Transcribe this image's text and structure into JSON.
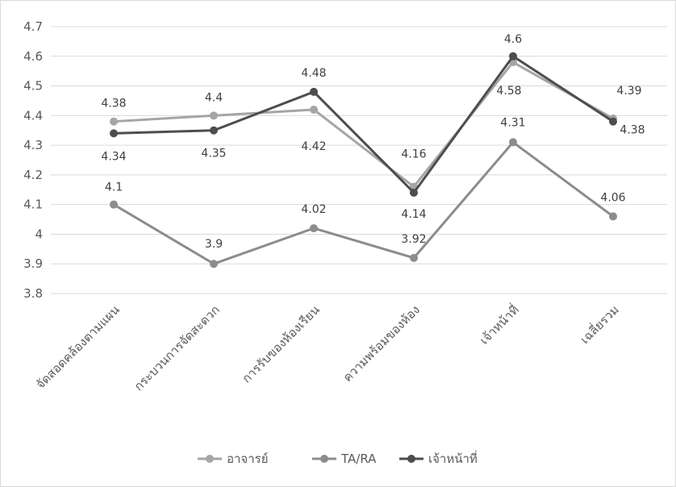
{
  "chart_data": {
    "type": "line",
    "title": "",
    "xlabel": "",
    "ylabel": "",
    "categories": [
      "จัดสอดคล้องตามแผน",
      "กระบวนการจัดสะดวก",
      "การรับของห้องเรียน",
      "ความพร้อมของห้อง",
      "เจ้าหน้าที่",
      "เฉลี่ยรวม"
    ],
    "yticks": [
      "3.8",
      "3.9",
      "4",
      "4.1",
      "4.2",
      "4.3",
      "4.4",
      "4.5",
      "4.6",
      "4.7"
    ],
    "ylim": [
      3.8,
      4.7
    ],
    "grid": true,
    "legend_position": "bottom",
    "series": [
      {
        "name": "อาจารย์",
        "color": "#a5a5a5",
        "values": [
          4.38,
          4.4,
          4.42,
          4.16,
          4.58,
          4.39
        ],
        "labels": [
          "4.38",
          "4.4",
          "4.42",
          "4.16",
          "4.58",
          "4.39"
        ]
      },
      {
        "name": "TA/RA",
        "color": "#8c8c8c",
        "values": [
          4.1,
          3.9,
          4.02,
          3.92,
          4.31,
          4.06
        ],
        "labels": [
          "4.1",
          "3.9",
          "4.02",
          "3.92",
          "4.31",
          "4.06"
        ]
      },
      {
        "name": "เจ้าหน้าที่",
        "color": "#4d4d4d",
        "values": [
          4.34,
          4.35,
          4.48,
          4.14,
          4.6,
          4.38
        ],
        "labels": [
          "4.34",
          "4.35",
          "4.48",
          "4.14",
          "4.6",
          "4.38"
        ]
      }
    ]
  }
}
